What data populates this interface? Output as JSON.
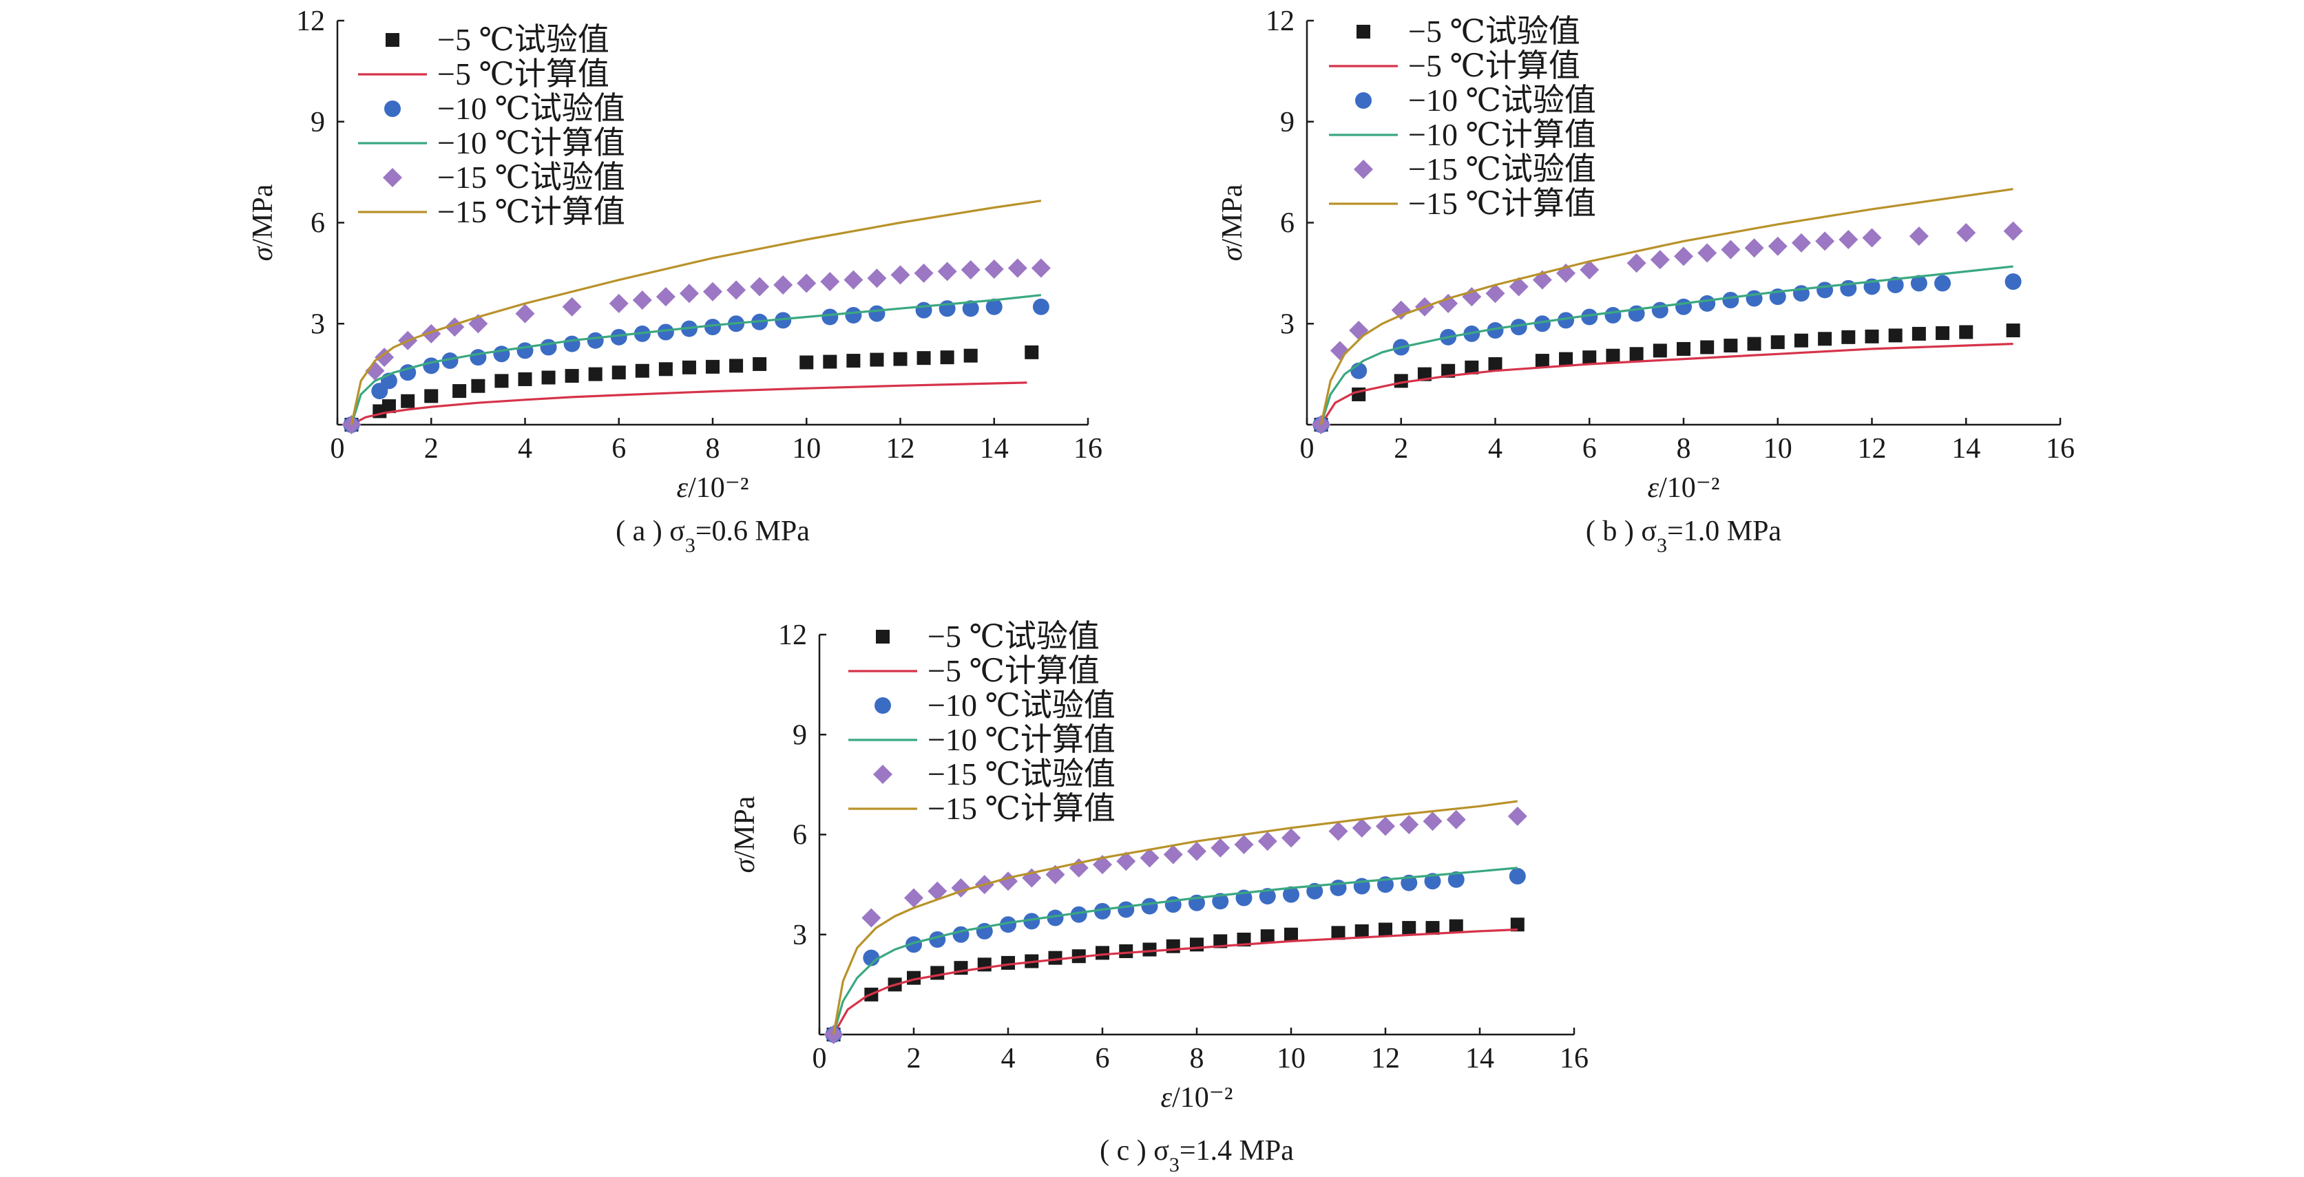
{
  "figure_title": "",
  "legend_labels": [
    "−5 ℃试验值",
    "−5 ℃计算值",
    "−10 ℃试验值",
    "−10 ℃计算值",
    "−15 ℃试验值",
    "−15 ℃计算值"
  ],
  "colors": {
    "exp_m5": "#1a1a1a",
    "exp_m10": "#3b6cc4",
    "exp_m15": "#9b77c4",
    "calc_m5": "#d6334a",
    "calc_m10": "#3aa880",
    "calc_m15": "#b8922a"
  },
  "chart_data": [
    {
      "type": "scatter",
      "caption": "( a ) σ3=0.6 MPa",
      "xlabel": "ε/10⁻²",
      "ylabel": "σ/MPa",
      "xlim": [
        0,
        16
      ],
      "ylim": [
        0,
        12
      ],
      "xticks": [
        0,
        2,
        4,
        6,
        8,
        10,
        12,
        14,
        16
      ],
      "yticks": [
        3,
        6,
        9,
        12
      ],
      "series": [
        {
          "name": "−5 ℃试验值",
          "kind": "scatter",
          "marker": "square",
          "color": "exp_m5",
          "x": [
            0.3,
            0.9,
            1.1,
            1.5,
            2.0,
            2.6,
            3.0,
            3.5,
            4.0,
            4.5,
            5.0,
            5.5,
            6.0,
            6.5,
            7.0,
            7.5,
            8.0,
            8.5,
            9.0,
            10.0,
            10.5,
            11.0,
            11.5,
            12.0,
            12.5,
            13.0,
            13.5,
            14.8
          ],
          "y": [
            0.0,
            0.4,
            0.55,
            0.7,
            0.85,
            1.0,
            1.15,
            1.3,
            1.35,
            1.4,
            1.45,
            1.5,
            1.55,
            1.6,
            1.65,
            1.7,
            1.72,
            1.75,
            1.8,
            1.85,
            1.87,
            1.9,
            1.93,
            1.95,
            1.98,
            2.0,
            2.05,
            2.15
          ]
        },
        {
          "name": "−5 ℃计算值",
          "kind": "line",
          "color": "calc_m5",
          "x": [
            0.3,
            0.6,
            1.0,
            1.5,
            2.0,
            3.0,
            4.0,
            5.0,
            6.0,
            8.0,
            10.0,
            12.0,
            14.7
          ],
          "y": [
            0.0,
            0.22,
            0.35,
            0.45,
            0.53,
            0.65,
            0.74,
            0.82,
            0.88,
            0.99,
            1.08,
            1.16,
            1.25
          ]
        },
        {
          "name": "−10 ℃试验值",
          "kind": "scatter",
          "marker": "circle",
          "color": "exp_m10",
          "x": [
            0.3,
            0.9,
            1.1,
            1.5,
            2.0,
            2.4,
            3.0,
            3.5,
            4.0,
            4.5,
            5.0,
            5.5,
            6.0,
            6.5,
            7.0,
            7.5,
            8.0,
            8.5,
            9.0,
            9.5,
            10.5,
            11.0,
            11.5,
            12.5,
            13.0,
            13.5,
            14.0,
            15.0
          ],
          "y": [
            0.0,
            1.0,
            1.3,
            1.55,
            1.75,
            1.9,
            2.0,
            2.1,
            2.2,
            2.3,
            2.4,
            2.5,
            2.6,
            2.7,
            2.75,
            2.85,
            2.9,
            3.0,
            3.05,
            3.1,
            3.2,
            3.25,
            3.3,
            3.4,
            3.45,
            3.45,
            3.5,
            3.5
          ]
        },
        {
          "name": "−10 ℃计算值",
          "kind": "line",
          "color": "calc_m10",
          "x": [
            0.3,
            0.5,
            0.8,
            1.2,
            1.6,
            2.0,
            3.0,
            4.0,
            5.0,
            6.0,
            8.0,
            10.0,
            12.0,
            14.0,
            15.0
          ],
          "y": [
            0.0,
            0.9,
            1.3,
            1.55,
            1.7,
            1.85,
            2.1,
            2.3,
            2.5,
            2.65,
            2.95,
            3.2,
            3.45,
            3.7,
            3.85
          ]
        },
        {
          "name": "−15 ℃试验值",
          "kind": "scatter",
          "marker": "diamond",
          "color": "exp_m15",
          "x": [
            0.3,
            0.8,
            1.0,
            1.5,
            2.0,
            2.5,
            3.0,
            4.0,
            5.0,
            6.0,
            6.5,
            7.0,
            7.5,
            8.0,
            8.5,
            9.0,
            9.5,
            10.0,
            10.5,
            11.0,
            11.5,
            12.0,
            12.5,
            13.0,
            13.5,
            14.0,
            14.5,
            15.0
          ],
          "y": [
            0.0,
            1.6,
            2.0,
            2.5,
            2.7,
            2.9,
            3.0,
            3.3,
            3.5,
            3.6,
            3.7,
            3.8,
            3.9,
            3.95,
            4.0,
            4.1,
            4.15,
            4.2,
            4.25,
            4.3,
            4.35,
            4.45,
            4.5,
            4.55,
            4.6,
            4.62,
            4.65,
            4.65
          ]
        },
        {
          "name": "−15 ℃计算值",
          "kind": "line",
          "color": "calc_m15",
          "x": [
            0.3,
            0.5,
            0.8,
            1.2,
            1.6,
            2.0,
            3.0,
            4.0,
            5.0,
            6.0,
            8.0,
            10.0,
            12.0,
            14.0,
            15.0
          ],
          "y": [
            0.0,
            1.3,
            1.9,
            2.3,
            2.55,
            2.75,
            3.2,
            3.6,
            3.95,
            4.3,
            4.95,
            5.5,
            6.0,
            6.45,
            6.65
          ]
        }
      ]
    },
    {
      "type": "scatter",
      "caption": "( b ) σ3=1.0 MPa",
      "xlabel": "ε/10⁻²",
      "ylabel": "σ/MPa",
      "xlim": [
        0,
        16
      ],
      "ylim": [
        0,
        12
      ],
      "xticks": [
        0,
        2,
        4,
        6,
        8,
        10,
        12,
        14,
        16
      ],
      "yticks": [
        3,
        6,
        9,
        12
      ],
      "series": [
        {
          "name": "−5 ℃试验值",
          "kind": "scatter",
          "marker": "square",
          "color": "exp_m5",
          "x": [
            0.3,
            1.1,
            2.0,
            2.5,
            3.0,
            3.5,
            4.0,
            5.0,
            5.5,
            6.0,
            6.5,
            7.0,
            7.5,
            8.0,
            8.5,
            9.0,
            9.5,
            10.0,
            10.5,
            11.0,
            11.5,
            12.0,
            12.5,
            13.0,
            13.5,
            14.0,
            15.0
          ],
          "y": [
            0.0,
            0.9,
            1.3,
            1.5,
            1.6,
            1.7,
            1.8,
            1.9,
            1.95,
            2.0,
            2.05,
            2.1,
            2.2,
            2.25,
            2.3,
            2.35,
            2.4,
            2.45,
            2.5,
            2.55,
            2.6,
            2.62,
            2.65,
            2.7,
            2.72,
            2.75,
            2.8
          ]
        },
        {
          "name": "−5 ℃计算值",
          "kind": "line",
          "color": "calc_m5",
          "x": [
            0.3,
            0.6,
            1.0,
            1.5,
            2.0,
            3.0,
            4.0,
            5.0,
            6.0,
            8.0,
            10.0,
            12.0,
            14.0,
            15.0
          ],
          "y": [
            0.0,
            0.65,
            0.95,
            1.1,
            1.25,
            1.45,
            1.6,
            1.7,
            1.8,
            1.95,
            2.1,
            2.25,
            2.35,
            2.4
          ]
        },
        {
          "name": "−10 ℃试验值",
          "kind": "scatter",
          "marker": "circle",
          "color": "exp_m10",
          "x": [
            0.3,
            1.1,
            2.0,
            3.0,
            3.5,
            4.0,
            4.5,
            5.0,
            5.5,
            6.0,
            6.5,
            7.0,
            7.5,
            8.0,
            8.5,
            9.0,
            9.5,
            10.0,
            10.5,
            11.0,
            11.5,
            12.0,
            12.5,
            13.0,
            13.5,
            15.0
          ],
          "y": [
            0.0,
            1.6,
            2.3,
            2.6,
            2.7,
            2.8,
            2.9,
            3.0,
            3.1,
            3.2,
            3.25,
            3.3,
            3.4,
            3.5,
            3.6,
            3.7,
            3.75,
            3.8,
            3.9,
            4.0,
            4.05,
            4.1,
            4.15,
            4.2,
            4.2,
            4.25
          ]
        },
        {
          "name": "−10 ℃计算值",
          "kind": "line",
          "color": "calc_m10",
          "x": [
            0.3,
            0.5,
            0.8,
            1.2,
            1.6,
            2.0,
            3.0,
            4.0,
            5.0,
            6.0,
            8.0,
            10.0,
            12.0,
            14.0,
            15.0
          ],
          "y": [
            0.0,
            0.9,
            1.5,
            1.9,
            2.15,
            2.3,
            2.6,
            2.85,
            3.05,
            3.25,
            3.6,
            3.95,
            4.25,
            4.55,
            4.7
          ]
        },
        {
          "name": "−15 ℃试验值",
          "kind": "scatter",
          "marker": "diamond",
          "color": "exp_m15",
          "x": [
            0.3,
            0.7,
            1.1,
            2.0,
            2.5,
            3.0,
            3.5,
            4.0,
            4.5,
            5.0,
            5.5,
            6.0,
            7.0,
            7.5,
            8.0,
            8.5,
            9.0,
            9.5,
            10.0,
            10.5,
            11.0,
            11.5,
            12.0,
            13.0,
            14.0,
            15.0
          ],
          "y": [
            0.0,
            2.2,
            2.8,
            3.4,
            3.5,
            3.6,
            3.8,
            3.9,
            4.1,
            4.3,
            4.5,
            4.6,
            4.8,
            4.9,
            5.0,
            5.1,
            5.2,
            5.25,
            5.3,
            5.4,
            5.45,
            5.5,
            5.55,
            5.6,
            5.7,
            5.75
          ]
        },
        {
          "name": "−15 ℃计算值",
          "kind": "line",
          "color": "calc_m15",
          "x": [
            0.3,
            0.5,
            0.8,
            1.2,
            1.6,
            2.0,
            3.0,
            4.0,
            5.0,
            6.0,
            8.0,
            10.0,
            12.0,
            14.0,
            15.0
          ],
          "y": [
            0.0,
            1.3,
            2.1,
            2.65,
            3.0,
            3.25,
            3.75,
            4.15,
            4.5,
            4.85,
            5.45,
            5.95,
            6.4,
            6.8,
            7.0
          ]
        }
      ]
    },
    {
      "type": "scatter",
      "caption": "( c ) σ3=1.4 MPa",
      "xlabel": "ε/10⁻²",
      "ylabel": "σ/MPa",
      "xlim": [
        0,
        16
      ],
      "ylim": [
        0,
        12
      ],
      "xticks": [
        0,
        2,
        4,
        6,
        8,
        10,
        12,
        14,
        16
      ],
      "yticks": [
        3,
        6,
        9,
        12
      ],
      "series": [
        {
          "name": "−5 ℃试验值",
          "kind": "scatter",
          "marker": "square",
          "color": "exp_m5",
          "x": [
            0.3,
            1.1,
            1.6,
            2.0,
            2.5,
            3.0,
            3.5,
            4.0,
            4.5,
            5.0,
            5.5,
            6.0,
            6.5,
            7.0,
            7.5,
            8.0,
            8.5,
            9.0,
            9.5,
            10.0,
            11.0,
            11.5,
            12.0,
            12.5,
            13.0,
            13.5,
            14.8
          ],
          "y": [
            0.0,
            1.2,
            1.5,
            1.7,
            1.85,
            2.0,
            2.1,
            2.15,
            2.2,
            2.3,
            2.35,
            2.45,
            2.5,
            2.55,
            2.65,
            2.7,
            2.8,
            2.85,
            2.95,
            3.0,
            3.05,
            3.1,
            3.15,
            3.2,
            3.2,
            3.25,
            3.3
          ]
        },
        {
          "name": "−5 ℃计算值",
          "kind": "line",
          "color": "calc_m5",
          "x": [
            0.3,
            0.6,
            1.0,
            1.5,
            2.0,
            3.0,
            4.0,
            5.0,
            6.0,
            8.0,
            10.0,
            12.0,
            14.0,
            14.8
          ],
          "y": [
            0.0,
            0.75,
            1.15,
            1.45,
            1.65,
            1.9,
            2.1,
            2.25,
            2.4,
            2.6,
            2.8,
            2.95,
            3.1,
            3.15
          ]
        },
        {
          "name": "−10 ℃试验值",
          "kind": "scatter",
          "marker": "circle",
          "color": "exp_m10",
          "x": [
            0.3,
            1.1,
            2.0,
            2.5,
            3.0,
            3.5,
            4.0,
            4.5,
            5.0,
            5.5,
            6.0,
            6.5,
            7.0,
            7.5,
            8.0,
            8.5,
            9.0,
            9.5,
            10.0,
            10.5,
            11.0,
            11.5,
            12.0,
            12.5,
            13.0,
            13.5,
            14.8
          ],
          "y": [
            0.0,
            2.3,
            2.7,
            2.85,
            3.0,
            3.1,
            3.3,
            3.4,
            3.5,
            3.6,
            3.7,
            3.75,
            3.85,
            3.9,
            3.95,
            4.0,
            4.1,
            4.15,
            4.2,
            4.3,
            4.4,
            4.45,
            4.5,
            4.55,
            4.6,
            4.65,
            4.75
          ]
        },
        {
          "name": "−10 ℃计算值",
          "kind": "line",
          "color": "calc_m10",
          "x": [
            0.3,
            0.5,
            0.8,
            1.2,
            1.6,
            2.0,
            3.0,
            4.0,
            5.0,
            6.0,
            8.0,
            10.0,
            12.0,
            14.0,
            14.8
          ],
          "y": [
            0.0,
            1.0,
            1.7,
            2.25,
            2.55,
            2.75,
            3.1,
            3.35,
            3.55,
            3.75,
            4.1,
            4.4,
            4.65,
            4.9,
            5.0
          ]
        },
        {
          "name": "−15 ℃试验值",
          "kind": "scatter",
          "marker": "diamond",
          "color": "exp_m15",
          "x": [
            0.3,
            1.1,
            2.0,
            2.5,
            3.0,
            3.5,
            4.0,
            4.5,
            5.0,
            5.5,
            6.0,
            6.5,
            7.0,
            7.5,
            8.0,
            8.5,
            9.0,
            9.5,
            10.0,
            11.0,
            11.5,
            12.0,
            12.5,
            13.0,
            13.5,
            14.8
          ],
          "y": [
            0.0,
            3.5,
            4.1,
            4.3,
            4.4,
            4.5,
            4.6,
            4.7,
            4.8,
            5.0,
            5.1,
            5.2,
            5.3,
            5.4,
            5.5,
            5.6,
            5.7,
            5.8,
            5.9,
            6.1,
            6.2,
            6.25,
            6.3,
            6.4,
            6.45,
            6.55
          ]
        },
        {
          "name": "−15 ℃计算值",
          "kind": "line",
          "color": "calc_m15",
          "x": [
            0.3,
            0.5,
            0.8,
            1.2,
            1.6,
            2.0,
            3.0,
            4.0,
            5.0,
            6.0,
            8.0,
            10.0,
            12.0,
            14.0,
            14.8
          ],
          "y": [
            0.0,
            1.6,
            2.6,
            3.2,
            3.55,
            3.8,
            4.3,
            4.7,
            5.0,
            5.3,
            5.8,
            6.2,
            6.55,
            6.85,
            7.0
          ]
        }
      ]
    }
  ]
}
